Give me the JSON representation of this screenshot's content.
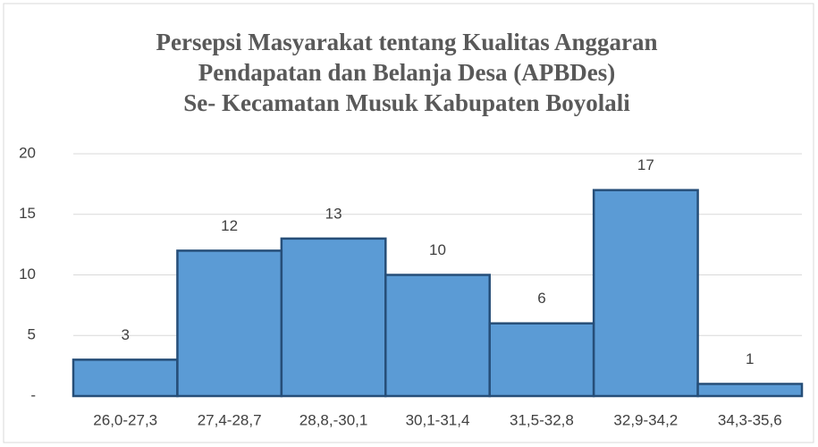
{
  "chart_data": {
    "type": "bar",
    "title": [
      "Persepsi Masyarakat tentang Kualitas Anggaran",
      "Pendapatan  dan Belanja Desa (APBDes)",
      "Se- Kecamatan Musuk Kabupaten Boyolali"
    ],
    "categories": [
      "26,0-27,3",
      "27,4-28,7",
      "28,8,-30,1",
      "30,1-31,4",
      "31,5-32,8",
      "32,9-34,2",
      "34,3-35,6"
    ],
    "values": [
      3,
      12,
      13,
      10,
      6,
      17,
      1
    ],
    "color": "#5b9bd5",
    "ylim": [
      0,
      20
    ],
    "yticks": [
      {
        "value": 0,
        "label": "-"
      },
      5,
      10,
      15,
      20
    ],
    "grid": true
  }
}
